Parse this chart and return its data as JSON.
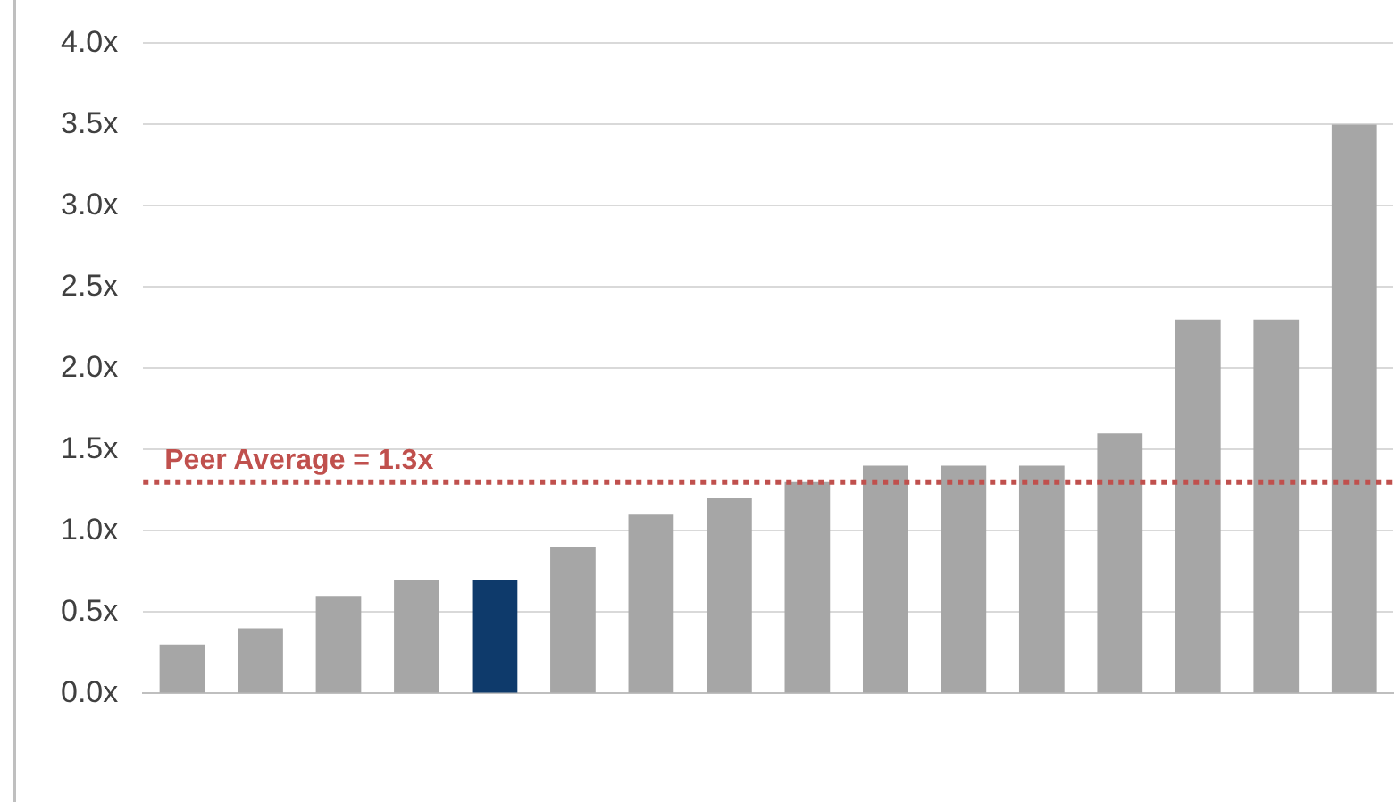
{
  "chart_data": {
    "type": "bar",
    "categories": [
      null,
      null,
      null,
      null,
      null,
      null,
      null,
      null,
      null,
      null,
      null,
      null,
      null,
      null,
      null,
      null
    ],
    "values": [
      0.3,
      0.4,
      0.6,
      0.7,
      0.7,
      0.9,
      1.1,
      1.2,
      1.3,
      1.4,
      1.4,
      1.4,
      1.6,
      2.3,
      2.3,
      3.5
    ],
    "colors": [
      "#a6a6a6",
      "#a6a6a6",
      "#a6a6a6",
      "#a6a6a6",
      "#0e3a6b",
      "#a6a6a6",
      "#a6a6a6",
      "#a6a6a6",
      "#a6a6a6",
      "#a6a6a6",
      "#a6a6a6",
      "#a6a6a6",
      "#a6a6a6",
      "#a6a6a6",
      "#a6a6a6",
      "#a6a6a6"
    ],
    "ylim": [
      0,
      4
    ],
    "yticks": [
      {
        "value": 0,
        "label": "0.0x"
      },
      {
        "value": 0.5,
        "label": "0.5x"
      },
      {
        "value": 1,
        "label": "1.0x"
      },
      {
        "value": 1.5,
        "label": "1.5x"
      },
      {
        "value": 2,
        "label": "2.0x"
      },
      {
        "value": 2.5,
        "label": "2.5x"
      },
      {
        "value": 3,
        "label": "3.0x"
      },
      {
        "value": 3.5,
        "label": "3.5x"
      },
      {
        "value": 4,
        "label": "4.0x"
      }
    ],
    "grid": "y",
    "ref_lines": [
      {
        "axis": "y",
        "value": 1.3,
        "label": "Peer Average = 1.3x",
        "color": "#c0504d",
        "line_style": "dotted"
      }
    ]
  }
}
